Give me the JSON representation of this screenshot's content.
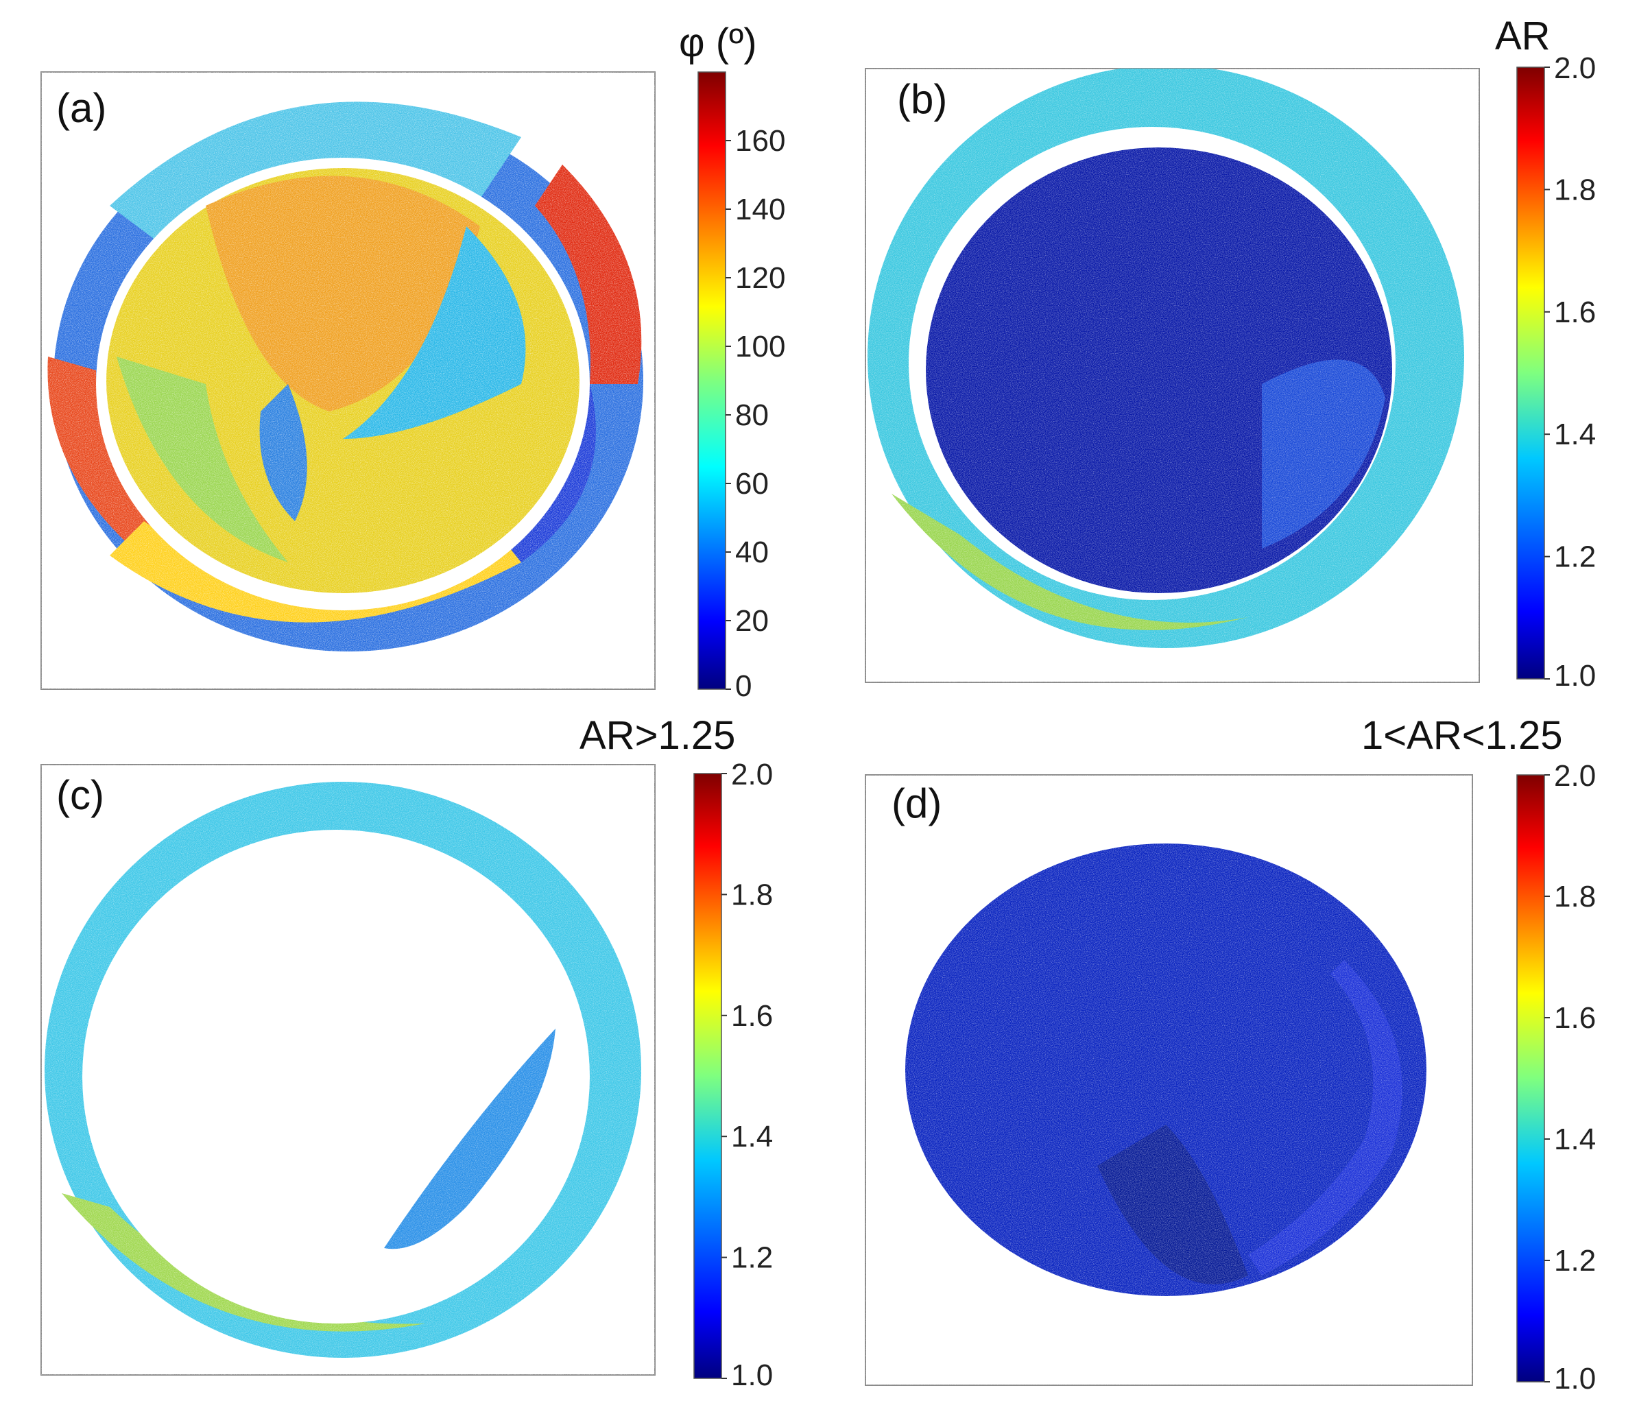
{
  "figure": {
    "panels": [
      {
        "id": "a",
        "label": "(a)",
        "colorbar_title": "φ (º)",
        "colorbar_min": 0,
        "colorbar_max": 180,
        "colorbar_ticks": [
          "0",
          "20",
          "40",
          "60",
          "80",
          "100",
          "120",
          "140",
          "160"
        ],
        "tick_values": [
          0,
          20,
          40,
          60,
          80,
          100,
          120,
          140,
          160
        ]
      },
      {
        "id": "b",
        "label": "(b)",
        "colorbar_title": "AR",
        "colorbar_min": 1.0,
        "colorbar_max": 2.0,
        "colorbar_ticks": [
          "1.0",
          "1.2",
          "1.4",
          "1.6",
          "1.8",
          "2.0"
        ],
        "tick_values": [
          1.0,
          1.2,
          1.4,
          1.6,
          1.8,
          2.0
        ]
      },
      {
        "id": "c",
        "label": "(c)",
        "colorbar_title": "AR>1.25",
        "colorbar_min": 1.0,
        "colorbar_max": 2.0,
        "colorbar_ticks": [
          "1.0",
          "1.2",
          "1.4",
          "1.6",
          "1.8",
          "2.0"
        ],
        "tick_values": [
          1.0,
          1.2,
          1.4,
          1.6,
          1.8,
          2.0
        ]
      },
      {
        "id": "d",
        "label": "(d)",
        "colorbar_title": "1<AR<1.25",
        "colorbar_min": 1.0,
        "colorbar_max": 2.0,
        "colorbar_ticks": [
          "1.0",
          "1.2",
          "1.4",
          "1.6",
          "1.8",
          "2.0"
        ],
        "tick_values": [
          1.0,
          1.2,
          1.4,
          1.6,
          1.8,
          2.0
        ]
      }
    ]
  },
  "chart_data": [
    {
      "type": "heatmap",
      "panel": "(a)",
      "title": "",
      "colorbar_label": "φ (º)",
      "colormap": "jet",
      "range": [
        0,
        180
      ],
      "description_values": "orientation angle map of elliptical ring; outer ring blue (~20-40) top/left, red (~170) at left and right edges, inner region yellow-orange (~100-140) with blue streak"
    },
    {
      "type": "heatmap",
      "panel": "(b)",
      "title": "",
      "colorbar_label": "AR",
      "colormap": "jet",
      "range": [
        1.0,
        2.0
      ],
      "description_values": "aspect ratio map; outer ring ~1.3-1.5, interior ~1.0-1.1"
    },
    {
      "type": "heatmap",
      "panel": "(c)",
      "title": "",
      "colorbar_label": "AR>1.25",
      "colormap": "jet",
      "range": [
        1.0,
        2.0
      ]
    },
    {
      "type": "heatmap",
      "panel": "(d)",
      "title": "",
      "colorbar_label": "1<AR<1.25",
      "colormap": "jet",
      "range": [
        1.0,
        2.0
      ]
    }
  ],
  "colors": {
    "jet_stops": [
      "#00007f",
      "#0000ff",
      "#007fff",
      "#00ffff",
      "#7fff7f",
      "#ffff00",
      "#ff7f00",
      "#ff0000",
      "#7f0000"
    ]
  }
}
